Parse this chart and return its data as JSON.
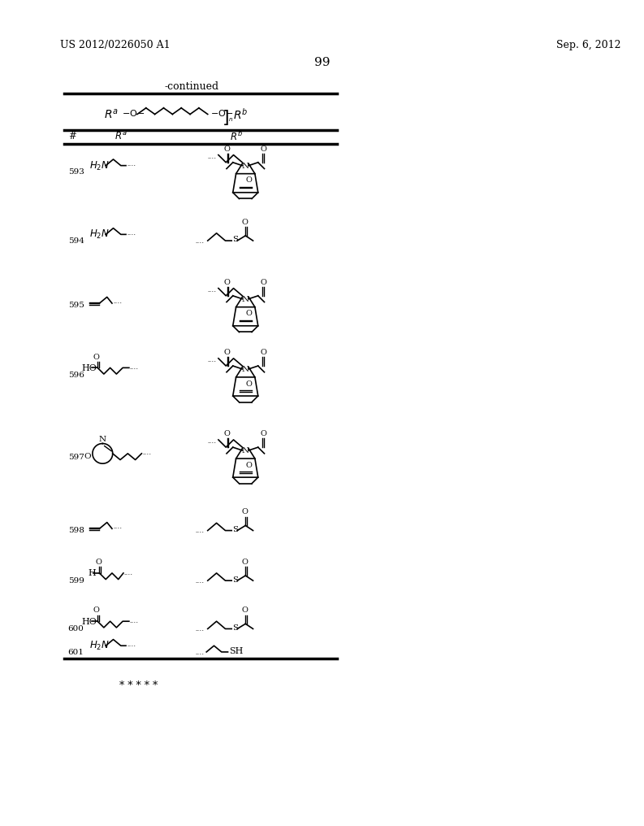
{
  "page_left": "US 2012/0226050 A1",
  "page_right": "Sep. 6, 2012",
  "page_number": "99",
  "continued_label": "-continued",
  "background_color": "#ffffff",
  "text_color": "#000000",
  "stars": "* * * * *",
  "row_nums": [
    "593",
    "594",
    "595",
    "596",
    "597",
    "598",
    "599",
    "600",
    "601"
  ]
}
